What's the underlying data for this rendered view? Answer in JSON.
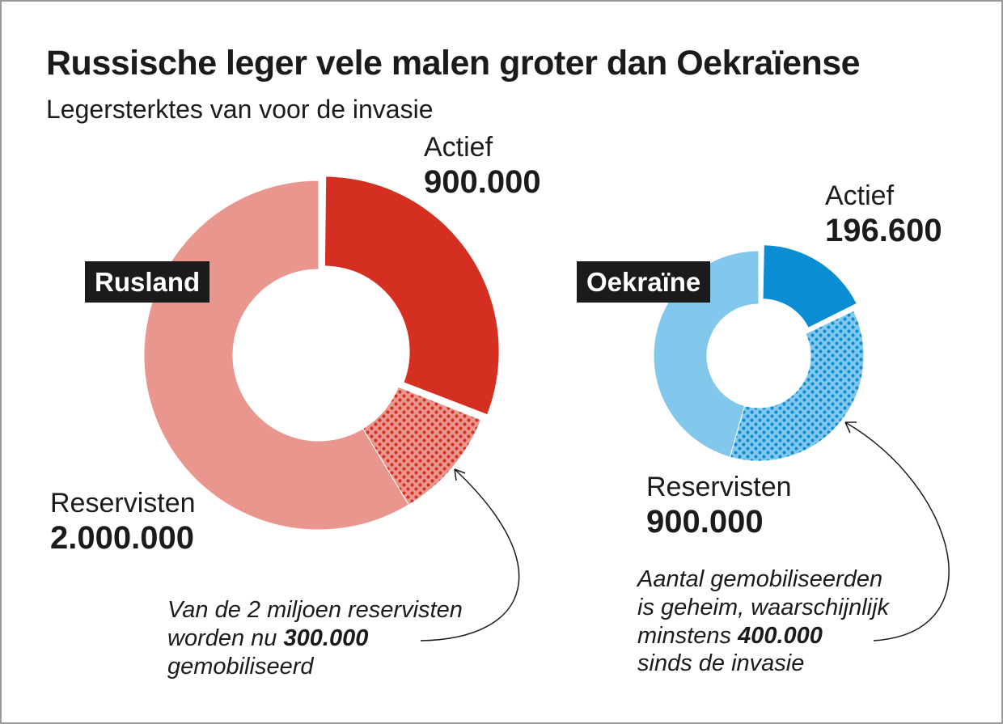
{
  "title": "Russische leger vele malen groter dan Oekraïense",
  "subtitle": "Legersterktes van voor de invasie",
  "colors": {
    "russia_active": "#d42f21",
    "russia_reserve": "#e9968f",
    "russia_dots": "#d42f21",
    "ukraine_active": "#0a8dd3",
    "ukraine_reserve": "#82c8ec",
    "ukraine_dots": "#0a8dd3",
    "label_bg": "#1b1b1b"
  },
  "chart_data": [
    {
      "type": "pie",
      "title": "Rusland",
      "segments": [
        {
          "name": "Actief",
          "value": 900000,
          "label": "900.000",
          "exploded": true
        },
        {
          "name": "Reservisten (gemobiliseerd)",
          "value": 300000,
          "pattern": "dots"
        },
        {
          "name": "Reservisten",
          "value": 1700000,
          "label": "2.000.000"
        }
      ],
      "annotation": {
        "before": "Van de 2 miljoen reservisten",
        "line2_before": "worden nu ",
        "bold": "300.000",
        "after": "gemobiliseerd"
      }
    },
    {
      "type": "pie",
      "title": "Oekraïne",
      "segments": [
        {
          "name": "Actief",
          "value": 196600,
          "label": "196.600",
          "exploded": true
        },
        {
          "name": "Reservisten (gemobiliseerd)",
          "value": 400000,
          "pattern": "dots"
        },
        {
          "name": "Reservisten",
          "value": 500000,
          "label": "900.000"
        }
      ],
      "annotation": {
        "line1": "Aantal gemobiliseerden",
        "line2": "is geheim, waarschijnlijk",
        "line3_before": "minstens ",
        "bold": "400.000",
        "line4": "sinds de invasie"
      }
    }
  ],
  "labels": {
    "ru_active_name": "Actief",
    "ru_active_value": "900.000",
    "ru_reserve_name": "Reservisten",
    "ru_reserve_value": "2.000.000",
    "ua_active_name": "Actief",
    "ua_active_value": "196.600",
    "ua_reserve_name": "Reservisten",
    "ua_reserve_value": "900.000"
  }
}
